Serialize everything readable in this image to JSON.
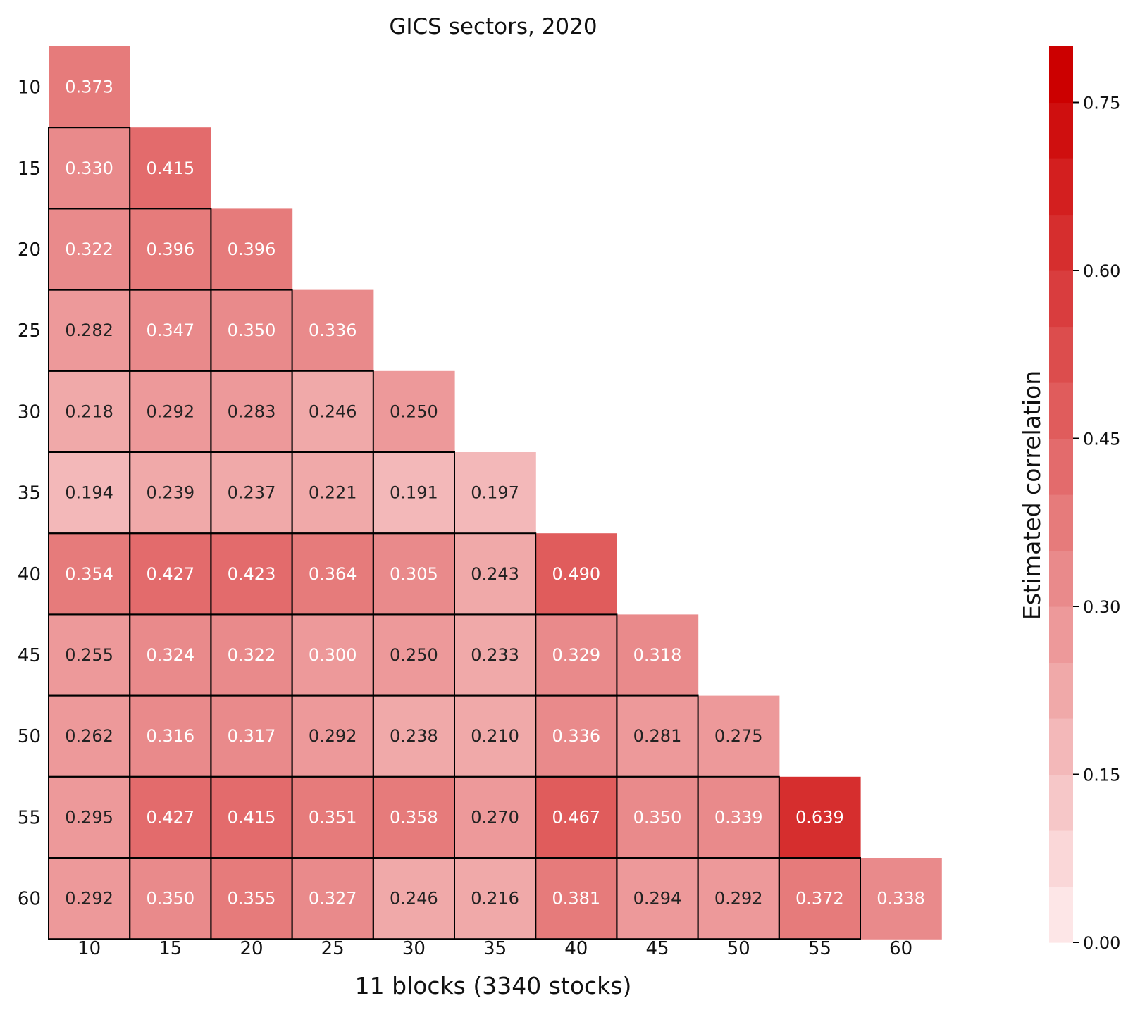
{
  "chart_data": {
    "type": "heatmap",
    "title": "GICS sectors, 2020",
    "xlabel": "11 blocks (3340 stocks)",
    "ylabel": "",
    "categories": [
      "10",
      "15",
      "20",
      "25",
      "30",
      "35",
      "40",
      "45",
      "50",
      "55",
      "60"
    ],
    "mask": "upper-triangle",
    "values": [
      [
        0.373
      ],
      [
        0.33,
        0.415
      ],
      [
        0.322,
        0.396,
        0.396
      ],
      [
        0.282,
        0.347,
        0.35,
        0.336
      ],
      [
        0.218,
        0.292,
        0.283,
        0.246,
        0.25
      ],
      [
        0.194,
        0.239,
        0.237,
        0.221,
        0.191,
        0.197
      ],
      [
        0.354,
        0.427,
        0.423,
        0.364,
        0.305,
        0.243,
        0.49
      ],
      [
        0.255,
        0.324,
        0.322,
        0.3,
        0.25,
        0.233,
        0.329,
        0.318
      ],
      [
        0.262,
        0.316,
        0.317,
        0.292,
        0.238,
        0.21,
        0.336,
        0.281,
        0.275
      ],
      [
        0.295,
        0.427,
        0.415,
        0.351,
        0.358,
        0.27,
        0.467,
        0.35,
        0.339,
        0.639
      ],
      [
        0.292,
        0.35,
        0.355,
        0.327,
        0.246,
        0.216,
        0.381,
        0.294,
        0.292,
        0.372,
        0.338
      ]
    ],
    "colorbar": {
      "label": "Estimated correlation",
      "vmin": 0.0,
      "vmax": 0.8,
      "levels": 16,
      "ticks": [
        0.0,
        0.15,
        0.3,
        0.45,
        0.6,
        0.75
      ],
      "tick_labels": [
        "0.00",
        "0.15",
        "0.30",
        "0.45",
        "0.60",
        "0.75"
      ],
      "color_low": "#fde6e7",
      "color_high": "#cc0000"
    }
  }
}
